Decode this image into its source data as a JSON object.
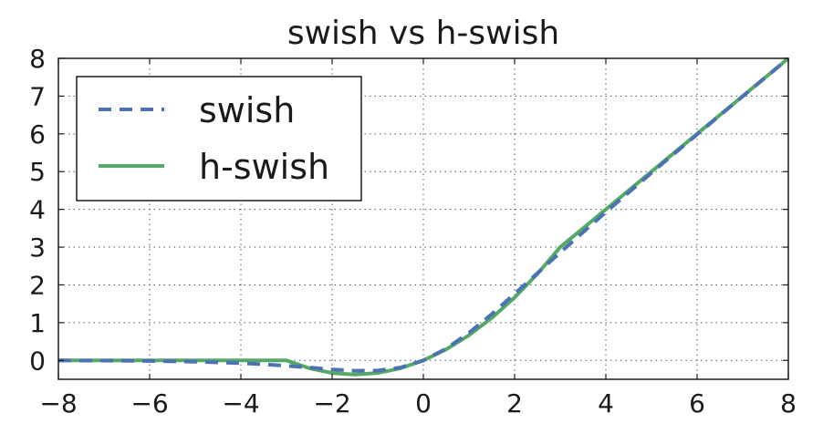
{
  "chart_data": {
    "type": "line",
    "title": "swish vs h-swish",
    "xlabel": "",
    "ylabel": "",
    "xlim": [
      -8,
      8
    ],
    "ylim": [
      -0.5,
      8
    ],
    "xticks": [
      -8,
      -6,
      -4,
      -2,
      0,
      2,
      4,
      6,
      8
    ],
    "xtick_labels": [
      "−8",
      "−6",
      "−4",
      "−2",
      "0",
      "2",
      "4",
      "6",
      "8"
    ],
    "yticks": [
      0,
      1,
      2,
      3,
      4,
      5,
      6,
      7,
      8
    ],
    "ytick_labels": [
      "0",
      "1",
      "2",
      "3",
      "4",
      "5",
      "6",
      "7",
      "8"
    ],
    "grid": true,
    "legend_position": "top-left",
    "x": [
      -8,
      -7,
      -6,
      -5,
      -4,
      -3.5,
      -3,
      -2.5,
      -2,
      -1.5,
      -1,
      -0.5,
      0,
      0.5,
      1,
      1.5,
      2,
      2.5,
      3,
      3.5,
      4,
      5,
      6,
      7,
      8
    ],
    "series": [
      {
        "name": "swish",
        "style": "dashed",
        "color": "#4c72b0",
        "values": [
          -0.003,
          -0.006,
          -0.015,
          -0.033,
          -0.072,
          -0.103,
          -0.142,
          -0.189,
          -0.238,
          -0.274,
          -0.269,
          -0.189,
          0,
          0.311,
          0.731,
          1.227,
          1.762,
          2.311,
          2.858,
          3.395,
          3.928,
          4.967,
          5.985,
          6.994,
          7.997
        ]
      },
      {
        "name": "h-swish",
        "style": "solid",
        "color": "#55a868",
        "values": [
          0,
          0,
          0,
          0,
          0,
          0,
          0,
          -0.208,
          -0.333,
          -0.375,
          -0.333,
          -0.208,
          0,
          0.292,
          0.667,
          1.125,
          1.667,
          2.292,
          3,
          3.5,
          4,
          5,
          6,
          7,
          8
        ]
      }
    ]
  }
}
